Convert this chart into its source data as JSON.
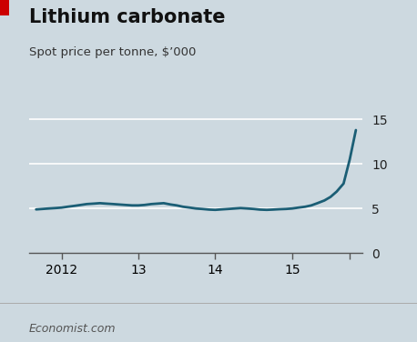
{
  "title": "Lithium carbonate",
  "subtitle": "Spot price per tonne, $’000",
  "background_color": "#cdd9e0",
  "line_color": "#1b5e75",
  "title_color": "#111111",
  "subtitle_color": "#333333",
  "watermark": "Economist.com",
  "red_bar_color": "#cc0000",
  "ylim": [
    0,
    16.5
  ],
  "yticks": [
    0,
    5,
    10,
    15
  ],
  "xlim_start": 2011.58,
  "xlim_end": 2015.92,
  "xtick_positions": [
    2012,
    2013,
    2014,
    2015,
    2015.75
  ],
  "xtick_labels": [
    "2012",
    "13",
    "14",
    "15",
    ""
  ],
  "x": [
    2011.67,
    2011.75,
    2011.83,
    2011.92,
    2012.0,
    2012.08,
    2012.17,
    2012.25,
    2012.33,
    2012.42,
    2012.5,
    2012.58,
    2012.67,
    2012.75,
    2012.83,
    2012.92,
    2013.0,
    2013.08,
    2013.17,
    2013.25,
    2013.33,
    2013.42,
    2013.5,
    2013.58,
    2013.67,
    2013.75,
    2013.83,
    2013.92,
    2014.0,
    2014.08,
    2014.17,
    2014.25,
    2014.33,
    2014.42,
    2014.5,
    2014.58,
    2014.67,
    2014.75,
    2014.83,
    2014.92,
    2015.0,
    2015.08,
    2015.17,
    2015.25,
    2015.33,
    2015.42,
    2015.5,
    2015.58,
    2015.67,
    2015.75,
    2015.83
  ],
  "y": [
    4.9,
    4.95,
    5.0,
    5.05,
    5.1,
    5.2,
    5.3,
    5.4,
    5.5,
    5.55,
    5.6,
    5.55,
    5.5,
    5.45,
    5.4,
    5.35,
    5.35,
    5.4,
    5.5,
    5.55,
    5.6,
    5.45,
    5.35,
    5.2,
    5.1,
    5.0,
    4.95,
    4.88,
    4.85,
    4.9,
    4.95,
    5.0,
    5.05,
    5.0,
    4.95,
    4.88,
    4.85,
    4.88,
    4.92,
    4.95,
    5.0,
    5.1,
    5.2,
    5.35,
    5.6,
    5.9,
    6.3,
    6.9,
    7.8,
    10.5,
    13.8
  ]
}
